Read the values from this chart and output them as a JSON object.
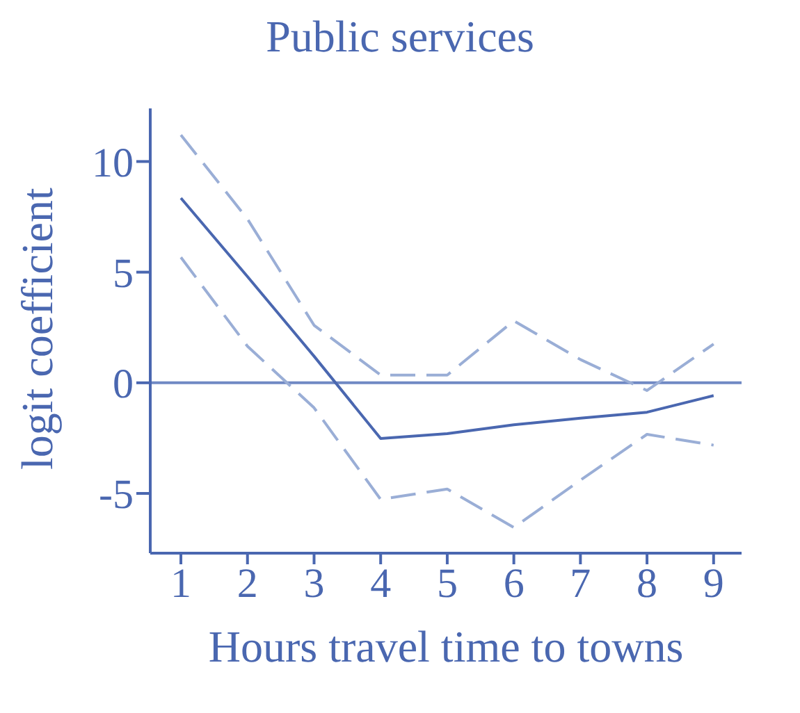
{
  "chart_data": {
    "type": "line",
    "title": "Public services",
    "xlabel": "Hours travel time to towns",
    "ylabel": "logit coefficient",
    "x": [
      1,
      2,
      3,
      4,
      5,
      6,
      7,
      8,
      9
    ],
    "series": [
      {
        "color": "#4a67b0",
        "line_style": "solid",
        "values": [
          8.35,
          4.8,
          1.2,
          -2.52,
          -2.3,
          -1.9,
          -1.6,
          -1.33,
          -0.58
        ]
      },
      {
        "color": "#9aaed6",
        "line_style": "dashed",
        "values": [
          11.2,
          7.4,
          2.6,
          0.35,
          0.35,
          2.8,
          1.05,
          -0.35,
          1.75
        ]
      },
      {
        "color": "#9aaed6",
        "line_style": "dashed",
        "values": [
          5.67,
          1.65,
          -1.13,
          -5.27,
          -4.8,
          -6.54,
          -4.4,
          -2.33,
          -2.82
        ]
      }
    ],
    "xlim": [
      0.54,
      9.42
    ],
    "xticks": [
      1,
      2,
      3,
      4,
      5,
      6,
      7,
      8,
      9
    ],
    "ylim": [
      -7.7,
      12.4
    ],
    "yticks": [
      -5,
      0,
      5,
      10
    ],
    "ref_lines": [
      {
        "axis": "y",
        "value": 0,
        "color": "#7089c4"
      }
    ],
    "grid": false,
    "legend": false,
    "marker": "none"
  }
}
